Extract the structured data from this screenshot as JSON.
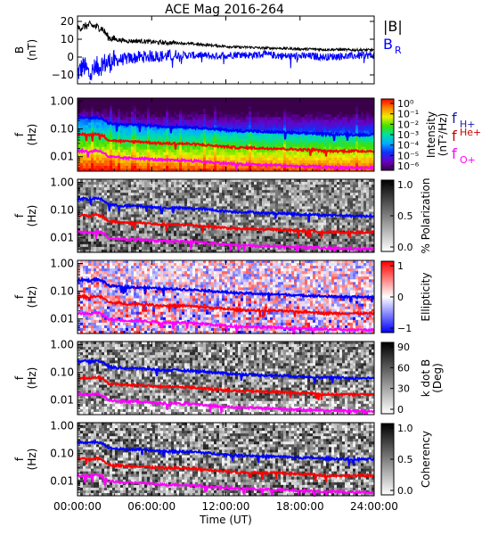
{
  "chart_data": {
    "title": "ACE Mag 2016-264",
    "type": "multi-panel",
    "x_axis": {
      "label": "Time (UT)",
      "range": [
        0,
        24
      ],
      "units": "hours",
      "tick_labels": [
        "00:00:00",
        "06:00:00",
        "12:00:00",
        "18:00:00",
        "24:00:00"
      ],
      "tick_values": [
        0,
        6,
        12,
        18,
        24
      ]
    },
    "colors": {
      "b_total": "#000000",
      "b_r": "#0000ff",
      "f_h": "#0000ff",
      "f_he": "#ff0000",
      "f_o": "#ff00ff",
      "legend_h": "#1a1ab0",
      "legend_he": "#cc0000",
      "legend_o": "#ff00ff"
    },
    "panels": [
      {
        "id": "b-field",
        "type": "line",
        "ylabel": "B (nT)",
        "ylim": [
          -15,
          23
        ],
        "yticks": [
          20,
          10,
          0,
          -10
        ],
        "ytick_labels": [
          "20",
          "10",
          "0",
          "−10"
        ],
        "legend": [
          "|B|",
          "B",
          "R"
        ],
        "series": [
          {
            "name": "|B|",
            "x": [
              0,
              0.5,
              1,
              1.5,
              2,
              2.5,
              3,
              4,
              5,
              6,
              7,
              8,
              9,
              10,
              11,
              12,
              13,
              14,
              15,
              16,
              17,
              18,
              19,
              20,
              21,
              22,
              23,
              24
            ],
            "y": [
              16,
              17,
              18,
              17,
              16,
              11,
              10,
              9,
              9,
              8.5,
              8,
              8,
              7.5,
              7,
              6.5,
              6,
              5.5,
              5.5,
              5,
              5,
              4.8,
              4.5,
              4.5,
              4.2,
              4.2,
              4,
              4,
              4
            ]
          },
          {
            "name": "B_R",
            "x": [
              0,
              0.5,
              1,
              1.5,
              2,
              2.5,
              3,
              4,
              5,
              6,
              7,
              8,
              9,
              10,
              11,
              12,
              13,
              14,
              15,
              16,
              17,
              18,
              19,
              20,
              21,
              22,
              23,
              24
            ],
            "y": [
              -9,
              -5,
              -10,
              -6,
              -4,
              -3,
              -2,
              -1,
              0,
              0.5,
              0.5,
              1,
              1,
              1,
              0.5,
              1,
              1.5,
              1,
              1.5,
              1,
              0.5,
              0.5,
              0.5,
              0,
              0.5,
              0.5,
              1,
              1
            ]
          }
        ]
      },
      {
        "id": "intensity",
        "type": "heatmap",
        "ylabel": "f (Hz)",
        "yscale": "log",
        "ylim": [
          0.003,
          1.3
        ],
        "ytick_labels": [
          "1.00",
          "0.10",
          "0.01"
        ],
        "ytick_values": [
          1,
          0.1,
          0.01
        ],
        "colorbar": {
          "label": "Intensity (nT²/Hz)",
          "scale": "rainbow",
          "tick_labels": [
            "10⁰",
            "10⁻¹",
            "10⁻²",
            "10⁻³",
            "10⁻⁴",
            "10⁻⁵",
            "10⁻⁶"
          ]
        },
        "legend": [
          {
            "label": "f",
            "sub": "H+"
          },
          {
            "label": "f",
            "sup": "He+"
          },
          {
            "label": "f",
            "sub": "O+"
          }
        ]
      },
      {
        "id": "polarization",
        "type": "heatmap",
        "ylabel": "f (Hz)",
        "yscale": "log",
        "ylim": [
          0.003,
          1.3
        ],
        "ytick_labels": [
          "1.00",
          "0.10",
          "0.01"
        ],
        "ytick_values": [
          1,
          0.1,
          0.01
        ],
        "colorbar": {
          "label": "% Polarization",
          "scale": "gray",
          "tick_labels": [
            "1.0",
            "0.5",
            "0.0"
          ]
        }
      },
      {
        "id": "ellipticity",
        "type": "heatmap",
        "ylabel": "f (Hz)",
        "yscale": "log",
        "ylim": [
          0.003,
          1.3
        ],
        "ytick_labels": [
          "1.00",
          "0.10",
          "0.01"
        ],
        "ytick_values": [
          1,
          0.1,
          0.01
        ],
        "colorbar": {
          "label": "Ellipticity",
          "scale": "bwr",
          "tick_labels": [
            "1",
            "0",
            "−1"
          ]
        }
      },
      {
        "id": "kdotb",
        "type": "heatmap",
        "ylabel": "f (Hz)",
        "yscale": "log",
        "ylim": [
          0.003,
          1.3
        ],
        "ytick_labels": [
          "1.00",
          "0.10",
          "0.01"
        ],
        "ytick_values": [
          1,
          0.1,
          0.01
        ],
        "colorbar": {
          "label": "k dot B (Deg)",
          "scale": "gray",
          "tick_labels": [
            "90",
            "60",
            "30",
            "0"
          ]
        }
      },
      {
        "id": "coherency",
        "type": "heatmap",
        "ylabel": "f (Hz)",
        "yscale": "log",
        "ylim": [
          0.003,
          1.3
        ],
        "ytick_labels": [
          "1.00",
          "0.10",
          "0.01"
        ],
        "ytick_values": [
          1,
          0.1,
          0.01
        ],
        "colorbar": {
          "label": "Coherency",
          "scale": "gray",
          "tick_labels": [
            "1.0",
            "0.5",
            "0.0"
          ]
        }
      }
    ],
    "gyrofrequency_lines": [
      {
        "name": "f_H+",
        "x": [
          0,
          0.5,
          1,
          1.5,
          2,
          2.5,
          3,
          4,
          5,
          6,
          7,
          8,
          9,
          10,
          11,
          12,
          13,
          14,
          15,
          16,
          17,
          18,
          19,
          20,
          21,
          22,
          23,
          24
        ],
        "y": [
          0.25,
          0.26,
          0.24,
          0.27,
          0.24,
          0.16,
          0.15,
          0.14,
          0.14,
          0.13,
          0.12,
          0.12,
          0.115,
          0.11,
          0.1,
          0.092,
          0.085,
          0.085,
          0.078,
          0.078,
          0.075,
          0.07,
          0.07,
          0.065,
          0.065,
          0.062,
          0.062,
          0.062
        ]
      },
      {
        "name": "f_He+",
        "x": [
          0,
          0.5,
          1,
          1.5,
          2,
          2.5,
          3,
          4,
          5,
          6,
          7,
          8,
          9,
          10,
          11,
          12,
          13,
          14,
          15,
          16,
          17,
          18,
          19,
          20,
          21,
          22,
          23,
          24
        ],
        "y": [
          0.062,
          0.065,
          0.06,
          0.068,
          0.06,
          0.04,
          0.038,
          0.035,
          0.035,
          0.032,
          0.03,
          0.03,
          0.029,
          0.027,
          0.025,
          0.023,
          0.021,
          0.021,
          0.02,
          0.02,
          0.019,
          0.018,
          0.018,
          0.016,
          0.016,
          0.016,
          0.016,
          0.016
        ]
      },
      {
        "name": "f_O+",
        "x": [
          0,
          0.5,
          1,
          1.5,
          2,
          2.5,
          3,
          4,
          5,
          6,
          7,
          8,
          9,
          10,
          11,
          12,
          13,
          14,
          15,
          16,
          17,
          18,
          19,
          20,
          21,
          22,
          23,
          24
        ],
        "y": [
          0.016,
          0.016,
          0.015,
          0.017,
          0.015,
          0.01,
          0.0095,
          0.0088,
          0.0088,
          0.008,
          0.0075,
          0.0075,
          0.0072,
          0.0068,
          0.0062,
          0.0058,
          0.0053,
          0.0053,
          0.005,
          0.005,
          0.0047,
          0.0045,
          0.0045,
          0.0042,
          0.0042,
          0.004,
          0.004,
          0.004
        ]
      }
    ]
  }
}
